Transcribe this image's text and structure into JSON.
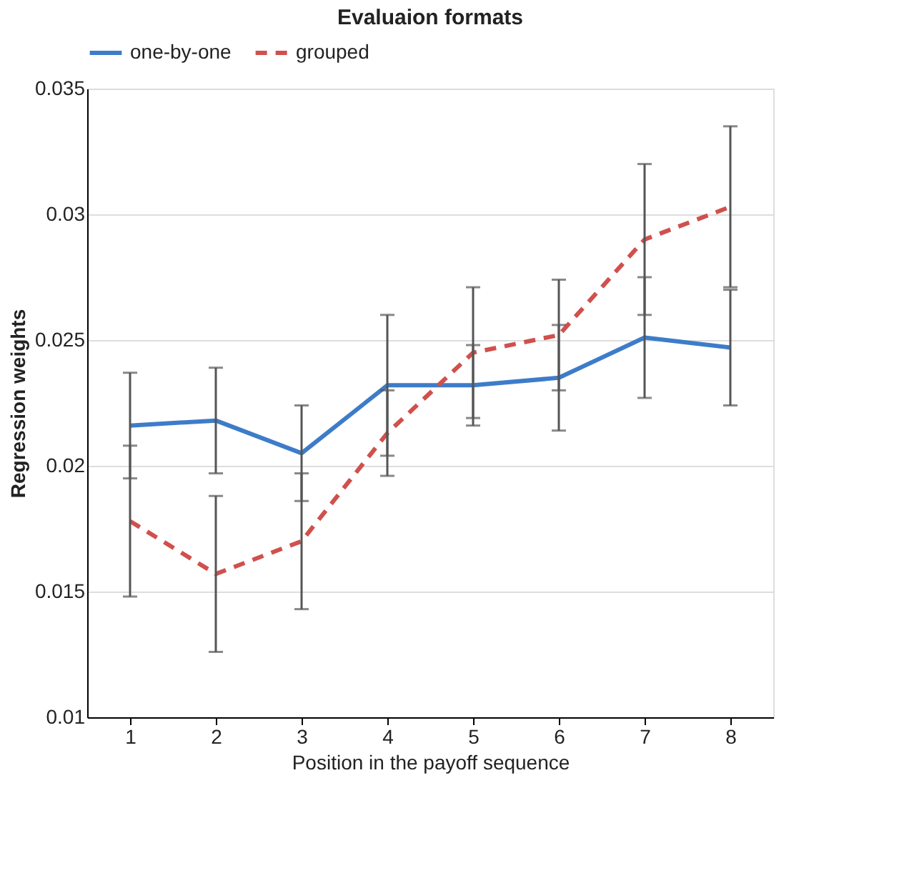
{
  "chart_data": {
    "type": "line",
    "title": "Evaluaion formats",
    "xlabel": "Position in the payoff sequence",
    "ylabel": "Regression weights",
    "categories": [
      "1",
      "2",
      "3",
      "4",
      "5",
      "6",
      "7",
      "8"
    ],
    "series": [
      {
        "name": "one-by-one",
        "color": "#3d7cc9",
        "line_style": "solid",
        "values": [
          0.0216,
          0.0218,
          0.0205,
          0.0232,
          0.0232,
          0.0235,
          0.0251,
          0.0247
        ],
        "errors": [
          0.0021,
          0.0021,
          0.0019,
          0.0028,
          0.0016,
          0.0021,
          0.0024,
          0.0023
        ]
      },
      {
        "name": "grouped",
        "color": "#d0504d",
        "line_style": "dashed",
        "values": [
          0.0178,
          0.0157,
          0.017,
          0.0213,
          0.0245,
          0.0252,
          0.029,
          0.0303
        ],
        "errors": [
          0.003,
          0.0031,
          0.0027,
          0.0017,
          0.0026,
          0.0022,
          0.003,
          0.0032
        ]
      }
    ],
    "ylim": [
      0.01,
      0.035
    ],
    "yticks": [
      0.01,
      0.015,
      0.02,
      0.025,
      0.03,
      0.035
    ],
    "grid": "y",
    "legend": "top",
    "marker": "none"
  }
}
